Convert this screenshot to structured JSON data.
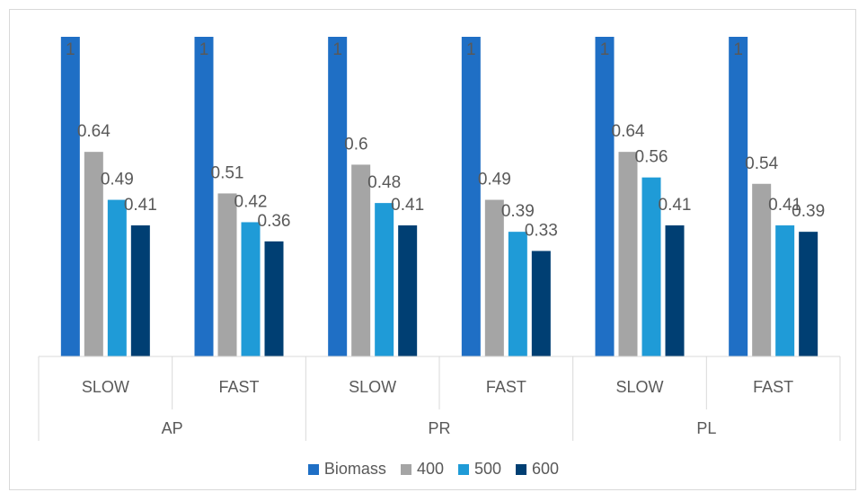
{
  "chart_data": {
    "type": "bar",
    "title": "",
    "groups": [
      "AP",
      "PR",
      "PL"
    ],
    "subcategories": [
      "SLOW",
      "FAST",
      "SLOW",
      "FAST",
      "SLOW",
      "FAST"
    ],
    "categories": [
      "AP SLOW",
      "AP FAST",
      "PR SLOW",
      "PR FAST",
      "PL SLOW",
      "PL FAST"
    ],
    "series": [
      {
        "name": "Biomass",
        "color": "#1f6fc5",
        "values": [
          1,
          1,
          1,
          1,
          1,
          1
        ]
      },
      {
        "name": "400",
        "color": "#a5a5a5",
        "values": [
          0.64,
          0.51,
          0.6,
          0.49,
          0.64,
          0.54
        ]
      },
      {
        "name": "500",
        "color": "#1f9bd7",
        "values": [
          0.49,
          0.42,
          0.48,
          0.39,
          0.56,
          0.41
        ]
      },
      {
        "name": "600",
        "color": "#003f73",
        "values": [
          0.41,
          0.36,
          0.41,
          0.33,
          0.41,
          0.39
        ]
      }
    ],
    "data_labels": [
      [
        "1",
        "1",
        "1",
        "1",
        "1",
        "1"
      ],
      [
        "0.64",
        "0.51",
        "0.6",
        "0.49",
        "0.64",
        "0.54"
      ],
      [
        "0.49",
        "0.42",
        "0.48",
        "0.39",
        "0.56",
        "0.41"
      ],
      [
        "0.41",
        "0.36",
        "0.41",
        "0.33",
        "0.41",
        "0.39"
      ]
    ],
    "ylim": [
      0,
      1
    ],
    "grid": false,
    "legend_position": "bottom",
    "xlabel": "",
    "ylabel": ""
  }
}
